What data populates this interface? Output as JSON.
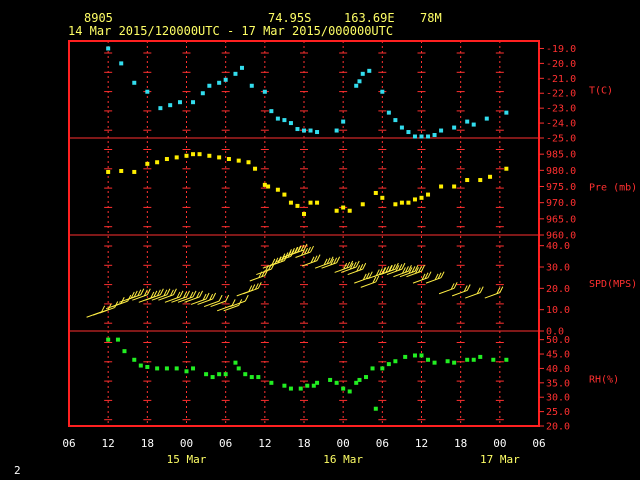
{
  "header": {
    "station": "8905",
    "lat": "74.95S",
    "lon": "163.69E",
    "elev": "78M",
    "range": "14 Mar 2015/120000UTC - 17 Mar 2015/000000UTC"
  },
  "page_number": "2",
  "colors": {
    "frame": "#ff2020",
    "grid": "#ff3030",
    "temperature": "#33ddee",
    "pressure": "#ffee00",
    "wind": "#ffee44",
    "humidity": "#22ee22",
    "header_text": "#ffff66"
  },
  "chart_data": {
    "type": "scatter",
    "x_range_hours": [
      -6,
      66
    ],
    "x_ticks": [
      {
        "h": -6,
        "label": "06"
      },
      {
        "h": 0,
        "label": "12"
      },
      {
        "h": 6,
        "label": "18"
      },
      {
        "h": 12,
        "label": "00"
      },
      {
        "h": 18,
        "label": "06"
      },
      {
        "h": 24,
        "label": "12"
      },
      {
        "h": 30,
        "label": "18"
      },
      {
        "h": 36,
        "label": "00"
      },
      {
        "h": 42,
        "label": "06"
      },
      {
        "h": 48,
        "label": "12"
      },
      {
        "h": 54,
        "label": "18"
      },
      {
        "h": 60,
        "label": "00"
      },
      {
        "h": 66,
        "label": "06"
      }
    ],
    "x_date_labels": [
      {
        "h": 12,
        "label": "15 Mar"
      },
      {
        "h": 36,
        "label": "16 Mar"
      },
      {
        "h": 60,
        "label": "17 Mar"
      }
    ],
    "panels": [
      {
        "name": "temperature",
        "label": "T(C)",
        "ylim": [
          -25.0,
          -18.5
        ],
        "ticks": [
          "-19.0",
          "-20.0",
          "-21.0",
          "-22.0",
          "-23.0",
          "-24.0",
          "-25.0"
        ],
        "tick_values": [
          -19,
          -20,
          -21,
          -22,
          -23,
          -24,
          -25
        ],
        "points": [
          [
            0,
            -19.0
          ],
          [
            2,
            -20.0
          ],
          [
            4,
            -21.3
          ],
          [
            6,
            -21.9
          ],
          [
            8,
            -23.0
          ],
          [
            9.5,
            -22.8
          ],
          [
            11,
            -22.6
          ],
          [
            13,
            -22.6
          ],
          [
            14.5,
            -22.0
          ],
          [
            15.5,
            -21.5
          ],
          [
            17,
            -21.3
          ],
          [
            18,
            -21.1
          ],
          [
            19.5,
            -20.7
          ],
          [
            20.5,
            -20.3
          ],
          [
            22,
            -21.5
          ],
          [
            24,
            -21.9
          ],
          [
            25,
            -23.2
          ],
          [
            26,
            -23.7
          ],
          [
            27,
            -23.8
          ],
          [
            28,
            -24.0
          ],
          [
            29,
            -24.4
          ],
          [
            30,
            -24.5
          ],
          [
            31,
            -24.5
          ],
          [
            32,
            -24.6
          ],
          [
            35,
            -24.5
          ],
          [
            36,
            -23.9
          ],
          [
            38,
            -21.5
          ],
          [
            38.5,
            -21.2
          ],
          [
            39,
            -20.7
          ],
          [
            40,
            -20.5
          ],
          [
            42,
            -21.9
          ],
          [
            43,
            -23.3
          ],
          [
            44,
            -23.8
          ],
          [
            45,
            -24.3
          ],
          [
            46,
            -24.6
          ],
          [
            47,
            -24.9
          ],
          [
            48,
            -24.9
          ],
          [
            49,
            -24.9
          ],
          [
            50,
            -24.8
          ],
          [
            51,
            -24.5
          ],
          [
            53,
            -24.3
          ],
          [
            55,
            -23.9
          ],
          [
            56,
            -24.1
          ],
          [
            58,
            -23.7
          ],
          [
            61,
            -23.3
          ]
        ]
      },
      {
        "name": "pressure",
        "label": "Pre (mb)",
        "ylim": [
          960.0,
          990.0
        ],
        "ticks": [
          "985.0",
          "980.0",
          "975.0",
          "970.0",
          "965.0",
          "960.0"
        ],
        "tick_values": [
          985,
          980,
          975,
          970,
          965,
          960
        ],
        "points": [
          [
            0,
            979.5
          ],
          [
            2,
            979.8
          ],
          [
            4,
            979.5
          ],
          [
            6,
            982.0
          ],
          [
            7.5,
            982.5
          ],
          [
            9,
            983.5
          ],
          [
            10.5,
            984.0
          ],
          [
            12,
            984.5
          ],
          [
            13,
            985.0
          ],
          [
            14,
            985.0
          ],
          [
            15.5,
            984.5
          ],
          [
            17,
            984.0
          ],
          [
            18.5,
            983.5
          ],
          [
            20,
            983.0
          ],
          [
            21.5,
            982.5
          ],
          [
            22.5,
            980.5
          ],
          [
            24,
            975.5
          ],
          [
            24.5,
            975.0
          ],
          [
            26,
            974.0
          ],
          [
            27,
            972.5
          ],
          [
            28,
            970.0
          ],
          [
            29,
            969.0
          ],
          [
            30,
            966.5
          ],
          [
            31,
            970.0
          ],
          [
            32,
            970.0
          ],
          [
            35,
            967.5
          ],
          [
            36,
            968.5
          ],
          [
            37,
            967.5
          ],
          [
            39,
            969.5
          ],
          [
            41,
            973.0
          ],
          [
            42,
            971.5
          ],
          [
            44,
            969.5
          ],
          [
            45,
            970.0
          ],
          [
            46,
            970.0
          ],
          [
            47,
            971.0
          ],
          [
            48,
            971.5
          ],
          [
            49,
            972.5
          ],
          [
            51,
            975.0
          ],
          [
            53,
            975.0
          ],
          [
            55,
            977.0
          ],
          [
            57,
            977.0
          ],
          [
            58.5,
            978.0
          ],
          [
            61,
            980.5
          ]
        ]
      },
      {
        "name": "wind",
        "label": "SPD(MPS)",
        "ylim": [
          0.0,
          45.0
        ],
        "ticks": [
          "40.0",
          "30.0",
          "20.0",
          "10.0",
          "0.0"
        ],
        "tick_values": [
          40,
          30,
          20,
          10,
          0
        ],
        "points": [
          [
            -1,
            9
          ],
          [
            0,
            10
          ],
          [
            1,
            11
          ],
          [
            2,
            13
          ],
          [
            3,
            14
          ],
          [
            4,
            16
          ],
          [
            5,
            17
          ],
          [
            6,
            17
          ],
          [
            7,
            16
          ],
          [
            8,
            17
          ],
          [
            9,
            17
          ],
          [
            10,
            17
          ],
          [
            11,
            16
          ],
          [
            12,
            16
          ],
          [
            13,
            16
          ],
          [
            14,
            16
          ],
          [
            15,
            15
          ],
          [
            16,
            15
          ],
          [
            17,
            14
          ],
          [
            18,
            14
          ],
          [
            19,
            12
          ],
          [
            20,
            12
          ],
          [
            21,
            14
          ],
          [
            22,
            19
          ],
          [
            23,
            20
          ],
          [
            24,
            26
          ],
          [
            25,
            29
          ],
          [
            26,
            32
          ],
          [
            27,
            33
          ],
          [
            28,
            35
          ],
          [
            29,
            37
          ],
          [
            30,
            38
          ],
          [
            31,
            37
          ],
          [
            32,
            33
          ],
          [
            34,
            32
          ],
          [
            35,
            32
          ],
          [
            37,
            30
          ],
          [
            38,
            30
          ],
          [
            39,
            29
          ],
          [
            40,
            25
          ],
          [
            41,
            23
          ],
          [
            42,
            27
          ],
          [
            43,
            28
          ],
          [
            44,
            29
          ],
          [
            45,
            29
          ],
          [
            46,
            28
          ],
          [
            47,
            28
          ],
          [
            48,
            28
          ],
          [
            49,
            25
          ],
          [
            51,
            25
          ],
          [
            53,
            20
          ],
          [
            55,
            19
          ],
          [
            57,
            18
          ],
          [
            60,
            18
          ]
        ]
      },
      {
        "name": "humidity",
        "label": "RH(%)",
        "ylim": [
          20.0,
          53.0
        ],
        "ticks": [
          "50.0",
          "45.0",
          "40.0",
          "35.0",
          "30.0",
          "25.0",
          "20.0"
        ],
        "tick_values": [
          50,
          45,
          40,
          35,
          30,
          25,
          20
        ],
        "points": [
          [
            0,
            50
          ],
          [
            1.5,
            50
          ],
          [
            2.5,
            46
          ],
          [
            4,
            43
          ],
          [
            5,
            41
          ],
          [
            6,
            40.5
          ],
          [
            7.5,
            40
          ],
          [
            9,
            40
          ],
          [
            10.5,
            40
          ],
          [
            12,
            39
          ],
          [
            13,
            40
          ],
          [
            15,
            38
          ],
          [
            16,
            37
          ],
          [
            17,
            38
          ],
          [
            18,
            38
          ],
          [
            19.5,
            42
          ],
          [
            20,
            40
          ],
          [
            21,
            38
          ],
          [
            22,
            37
          ],
          [
            23,
            37
          ],
          [
            25,
            35
          ],
          [
            27,
            34
          ],
          [
            28,
            33
          ],
          [
            29.5,
            33
          ],
          [
            30.5,
            34
          ],
          [
            31.5,
            34
          ],
          [
            32,
            35
          ],
          [
            34,
            36
          ],
          [
            35,
            35
          ],
          [
            36,
            33
          ],
          [
            37,
            32
          ],
          [
            38,
            35
          ],
          [
            38.5,
            36
          ],
          [
            39.5,
            37
          ],
          [
            40.5,
            40
          ],
          [
            41,
            26
          ],
          [
            42,
            40
          ],
          [
            43,
            41.5
          ],
          [
            44,
            42.5
          ],
          [
            45.5,
            44
          ],
          [
            47,
            44.5
          ],
          [
            48,
            44.5
          ],
          [
            49,
            43
          ],
          [
            50,
            42
          ],
          [
            52,
            42.5
          ],
          [
            53,
            42
          ],
          [
            55,
            43
          ],
          [
            56,
            43
          ],
          [
            57,
            44
          ],
          [
            59,
            43
          ],
          [
            61,
            43
          ]
        ]
      }
    ]
  }
}
